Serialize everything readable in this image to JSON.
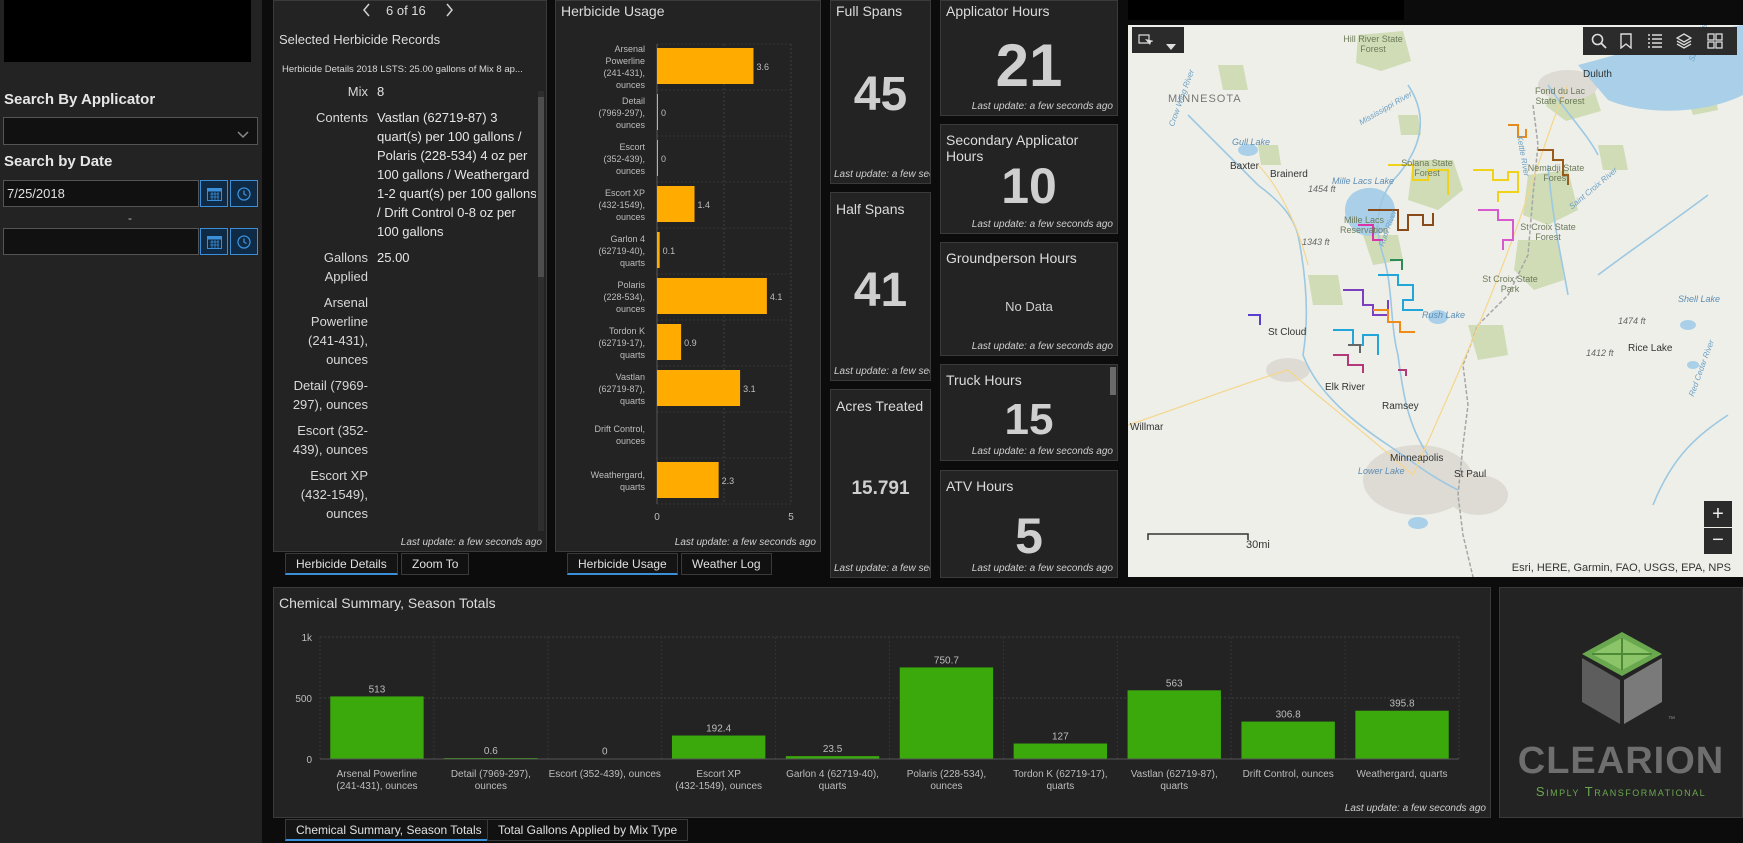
{
  "sidebar": {
    "search_applicator_label": "Search By Applicator",
    "search_date_label": "Search by Date",
    "date_start": "7/25/2018",
    "date_sep": "-",
    "date_end": ""
  },
  "details": {
    "pager": "6 of 16",
    "title": "Selected Herbicide Records",
    "record_header": "Herbicide Details 2018 LSTS: 25.00 gallons of Mix 8 ap...",
    "fields": [
      {
        "label": "Mix",
        "value": "8"
      },
      {
        "label": "Contents",
        "value": "Vastlan (62719-87) 3 quart(s) per 100 gallons / Polaris (228-534) 4 oz per 100 gallons / Weathergard 1-2 quart(s) per 100 gallons / Drift Control 0-8 oz per 100 gallons"
      },
      {
        "label": "Gallons Applied",
        "value": "25.00"
      },
      {
        "label": "Arsenal Powerline (241-431), ounces",
        "value": ""
      },
      {
        "label": "Detail (7969-297), ounces",
        "value": ""
      },
      {
        "label": "Escort (352-439), ounces",
        "value": ""
      },
      {
        "label": "Escort XP (432-1549), ounces",
        "value": ""
      }
    ],
    "footer": "Last update: a few seconds ago",
    "tabs": [
      "Herbicide Details",
      "Zoom To"
    ]
  },
  "usage": {
    "title": "Herbicide Usage",
    "footer": "Last update: a few seconds ago",
    "tabs": [
      "Herbicide Usage",
      "Weather Log"
    ]
  },
  "stats": {
    "full_spans": {
      "title": "Full Spans",
      "value": "45",
      "footer": "Last update: a few sec"
    },
    "half_spans": {
      "title": "Half Spans",
      "value": "41",
      "footer": "Last update: a few sec"
    },
    "acres": {
      "title": "Acres Treated",
      "value": "15.791",
      "footer": "Last update: a few sec"
    },
    "applicator": {
      "title": "Applicator Hours",
      "value": "21",
      "footer": "Last update: a few seconds ago"
    },
    "secondary": {
      "title": "Secondary Applicator Hours",
      "value": "10",
      "footer": "Last update: a few seconds ago"
    },
    "groundperson": {
      "title": "Groundperson Hours",
      "value": "No Data",
      "footer": "Last update: a few seconds ago"
    },
    "truck": {
      "title": "Truck Hours",
      "value": "15",
      "footer": "Last update: a few seconds ago"
    },
    "atv": {
      "title": "ATV Hours",
      "value": "5",
      "footer": "Last update: a few seconds ago"
    }
  },
  "map": {
    "attribution": "Esri, HERE, Garmin, FAO, USGS, EPA, NPS",
    "scale_label": "30mi",
    "zoom_in": "+",
    "zoom_out": "−",
    "labels": [
      {
        "text": "MINNESOTA",
        "cls": "st"
      },
      {
        "text": "Hill River State Forest",
        "cls": "pk"
      },
      {
        "text": "Duluth",
        "cls": "ct"
      },
      {
        "text": "Fond du Lac State Forest",
        "cls": "pk"
      },
      {
        "text": "Brainerd",
        "cls": "ct"
      },
      {
        "text": "Baxter",
        "cls": "ct"
      },
      {
        "text": "Gull Lake",
        "cls": "wt"
      },
      {
        "text": "Mille Lacs Lake",
        "cls": "wt"
      },
      {
        "text": "Solana State Forest",
        "cls": "pk"
      },
      {
        "text": "Nemadji State Forest",
        "cls": "pk"
      },
      {
        "text": "St Croix State Forest",
        "cls": "pk"
      },
      {
        "text": "St Croix State Park",
        "cls": "pk"
      },
      {
        "text": "Mille Lacs Reservation",
        "cls": "pk"
      },
      {
        "text": "1454 ft",
        "cls": "el"
      },
      {
        "text": "1343 ft",
        "cls": "el"
      },
      {
        "text": "St Cloud",
        "cls": "ct"
      },
      {
        "text": "Elk River",
        "cls": "ct"
      },
      {
        "text": "Ramsey",
        "cls": "ct"
      },
      {
        "text": "Minneapolis",
        "cls": "ct"
      },
      {
        "text": "St Paul",
        "cls": "ct"
      },
      {
        "text": "Lower Lake",
        "cls": "wt"
      },
      {
        "text": "Rush Lake",
        "cls": "wt"
      },
      {
        "text": "Willmar",
        "cls": "ct"
      },
      {
        "text": "Rice Lake",
        "cls": "ct"
      },
      {
        "text": "Shell Lake",
        "cls": "wt"
      },
      {
        "text": "1474 ft",
        "cls": "el"
      },
      {
        "text": "1412 ft",
        "cls": "el"
      },
      {
        "text": "Crow Wing River",
        "cls": "rv"
      },
      {
        "text": "Mississippi River",
        "cls": "rv"
      },
      {
        "text": "Rum River",
        "cls": "rv"
      },
      {
        "text": "Kettle River",
        "cls": "rv"
      },
      {
        "text": "Saint Croix River",
        "cls": "rv"
      },
      {
        "text": "Red Cedar River",
        "cls": "rv"
      },
      {
        "text": "Saint Louis River",
        "cls": "rv"
      }
    ]
  },
  "summary": {
    "title": "Chemical Summary, Season Totals",
    "footer": "Last update: a few seconds ago",
    "tabs": [
      "Chemical Summary, Season Totals",
      "Total Gallons Applied by Mix Type"
    ]
  },
  "logo": {
    "name": "CLEARION",
    "tagline": "Simply Transformational",
    "tm": "™"
  },
  "colors": {
    "usage_bar": "#ffab00",
    "summary_bar": "#3ba80c",
    "accent": "#3b8fd9",
    "brand_green": "#6aa84f"
  },
  "chart_data": [
    {
      "type": "bar",
      "orientation": "horizontal",
      "title": "Herbicide Usage",
      "categories": [
        "Arsenal Powerline (241-431), ounces",
        "Detail (7969-297), ounces",
        "Escort (352-439), ounces",
        "Escort XP (432-1549), ounces",
        "Garlon 4 (62719-40), quarts",
        "Polaris (228-534), ounces",
        "Tordon K (62719-17), quarts",
        "Vastlan (62719-87), quarts",
        "Drift Control, ounces",
        "Weathergard, quarts"
      ],
      "values": [
        3.6,
        0,
        0,
        1.4,
        0.1,
        4.1,
        0.9,
        3.1,
        null,
        2.3
      ],
      "data_labels": [
        "3.6",
        "0",
        "0",
        "1.4",
        "0.1",
        "4.1",
        "0.9",
        "3.1",
        "",
        "2.3"
      ],
      "xlim": [
        0,
        5
      ],
      "xticks": [
        "0",
        "5"
      ],
      "grid": true
    },
    {
      "type": "bar",
      "title": "Chemical Summary, Season Totals",
      "categories": [
        "Arsenal Powerline (241-431), ounces",
        "Detail (7969-297), ounces",
        "Escort (352-439), ounces",
        "Escort XP (432-1549), ounces",
        "Garlon 4 (62719-40), quarts",
        "Polaris (228-534), ounces",
        "Tordon K (62719-17), quarts",
        "Vastlan (62719-87), quarts",
        "Drift Control, ounces",
        "Weathergard, quarts"
      ],
      "values": [
        513,
        0.6,
        0,
        192.4,
        23.5,
        750.7,
        127,
        563,
        306.8,
        395.8
      ],
      "data_labels": [
        "513",
        "0.6",
        "0",
        "192.4",
        "23.5",
        "750.7",
        "127",
        "563",
        "306.8",
        "395.8"
      ],
      "ylim": [
        0,
        1000
      ],
      "yticks": [
        "0",
        "500",
        "1k"
      ],
      "grid": true
    }
  ]
}
